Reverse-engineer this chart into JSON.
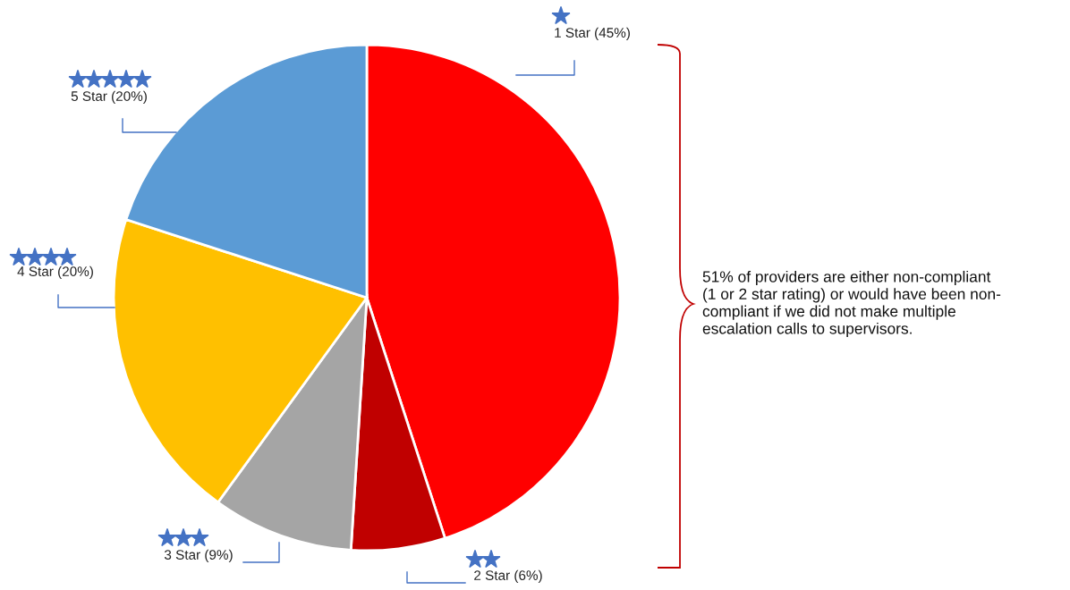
{
  "chart_data": {
    "type": "pie",
    "categories": [
      "1 Star",
      "2 Star",
      "3 Star",
      "4 Star",
      "5 Star"
    ],
    "values": [
      45,
      6,
      9,
      20,
      20
    ],
    "value_labels": [
      "(45%)",
      "(6%)",
      "(9%)",
      "(20%)",
      "(20%)"
    ],
    "colors": [
      "#ff0000",
      "#c00000",
      "#a5a5a5",
      "#ffc000",
      "#5b9bd5"
    ],
    "annotations": [
      "51% of providers are either non-compliant\n(1 or 2 star rating) or would have been non-\ncompliant if we did not make multiple\nescalation calls to supervisors."
    ]
  }
}
